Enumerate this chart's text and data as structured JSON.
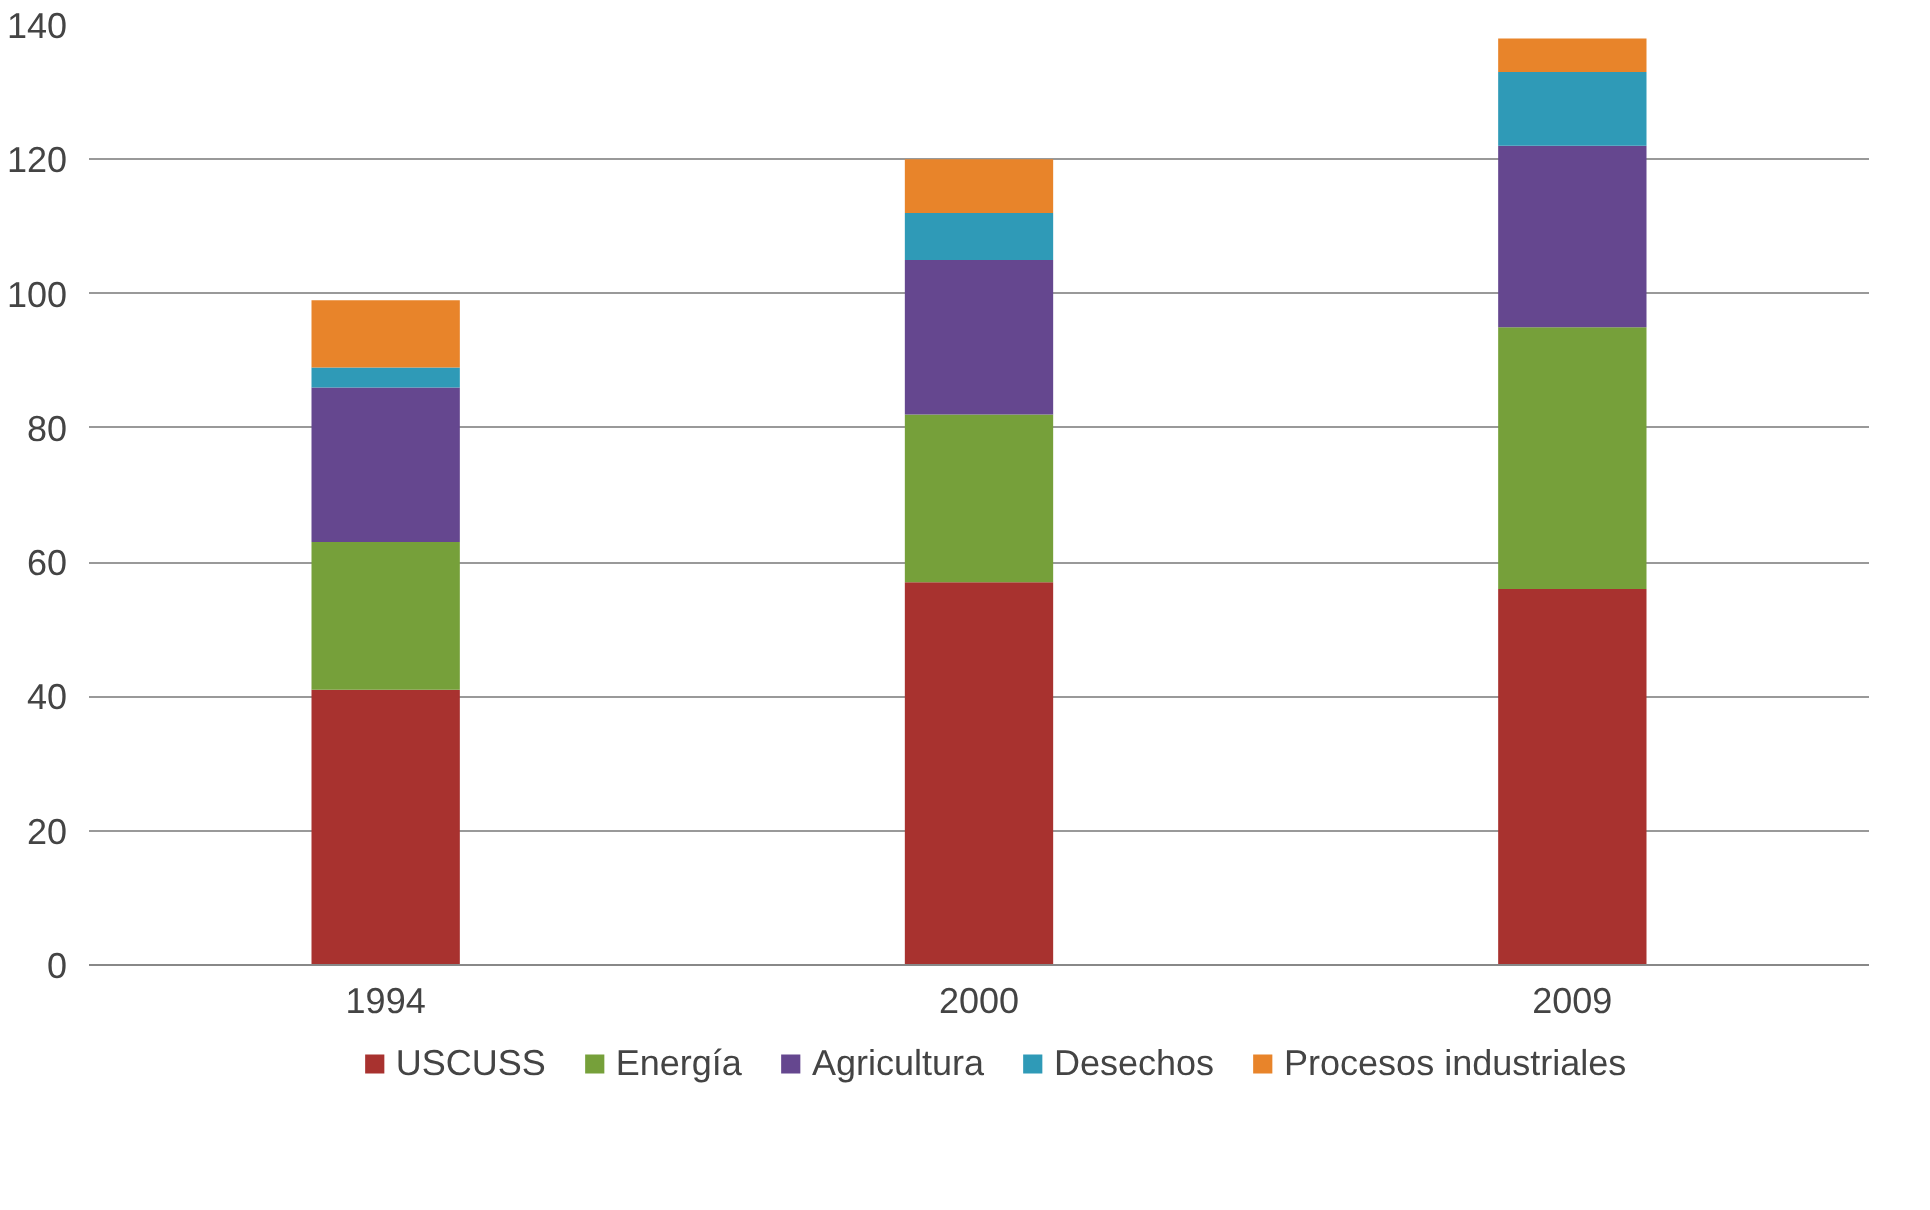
{
  "chart_data": {
    "type": "bar",
    "stacked": true,
    "categories": [
      "1994",
      "2000",
      "2009"
    ],
    "series": [
      {
        "name": "USCUSS",
        "color": "#a8322f",
        "values": [
          41,
          57,
          56
        ]
      },
      {
        "name": "Energía",
        "color": "#76a03a",
        "values": [
          22,
          25,
          39
        ]
      },
      {
        "name": "Agricultura",
        "color": "#65478f",
        "values": [
          23,
          23,
          27
        ]
      },
      {
        "name": "Desechos",
        "color": "#2f9ab7",
        "values": [
          3,
          7,
          11
        ]
      },
      {
        "name": "Procesos industriales",
        "color": "#e8842a",
        "values": [
          10,
          8,
          5
        ]
      }
    ],
    "ylim": [
      0,
      140
    ],
    "yticks": [
      0,
      20,
      40,
      60,
      80,
      100,
      120,
      140
    ],
    "grid": "y",
    "legend": "bottom"
  }
}
